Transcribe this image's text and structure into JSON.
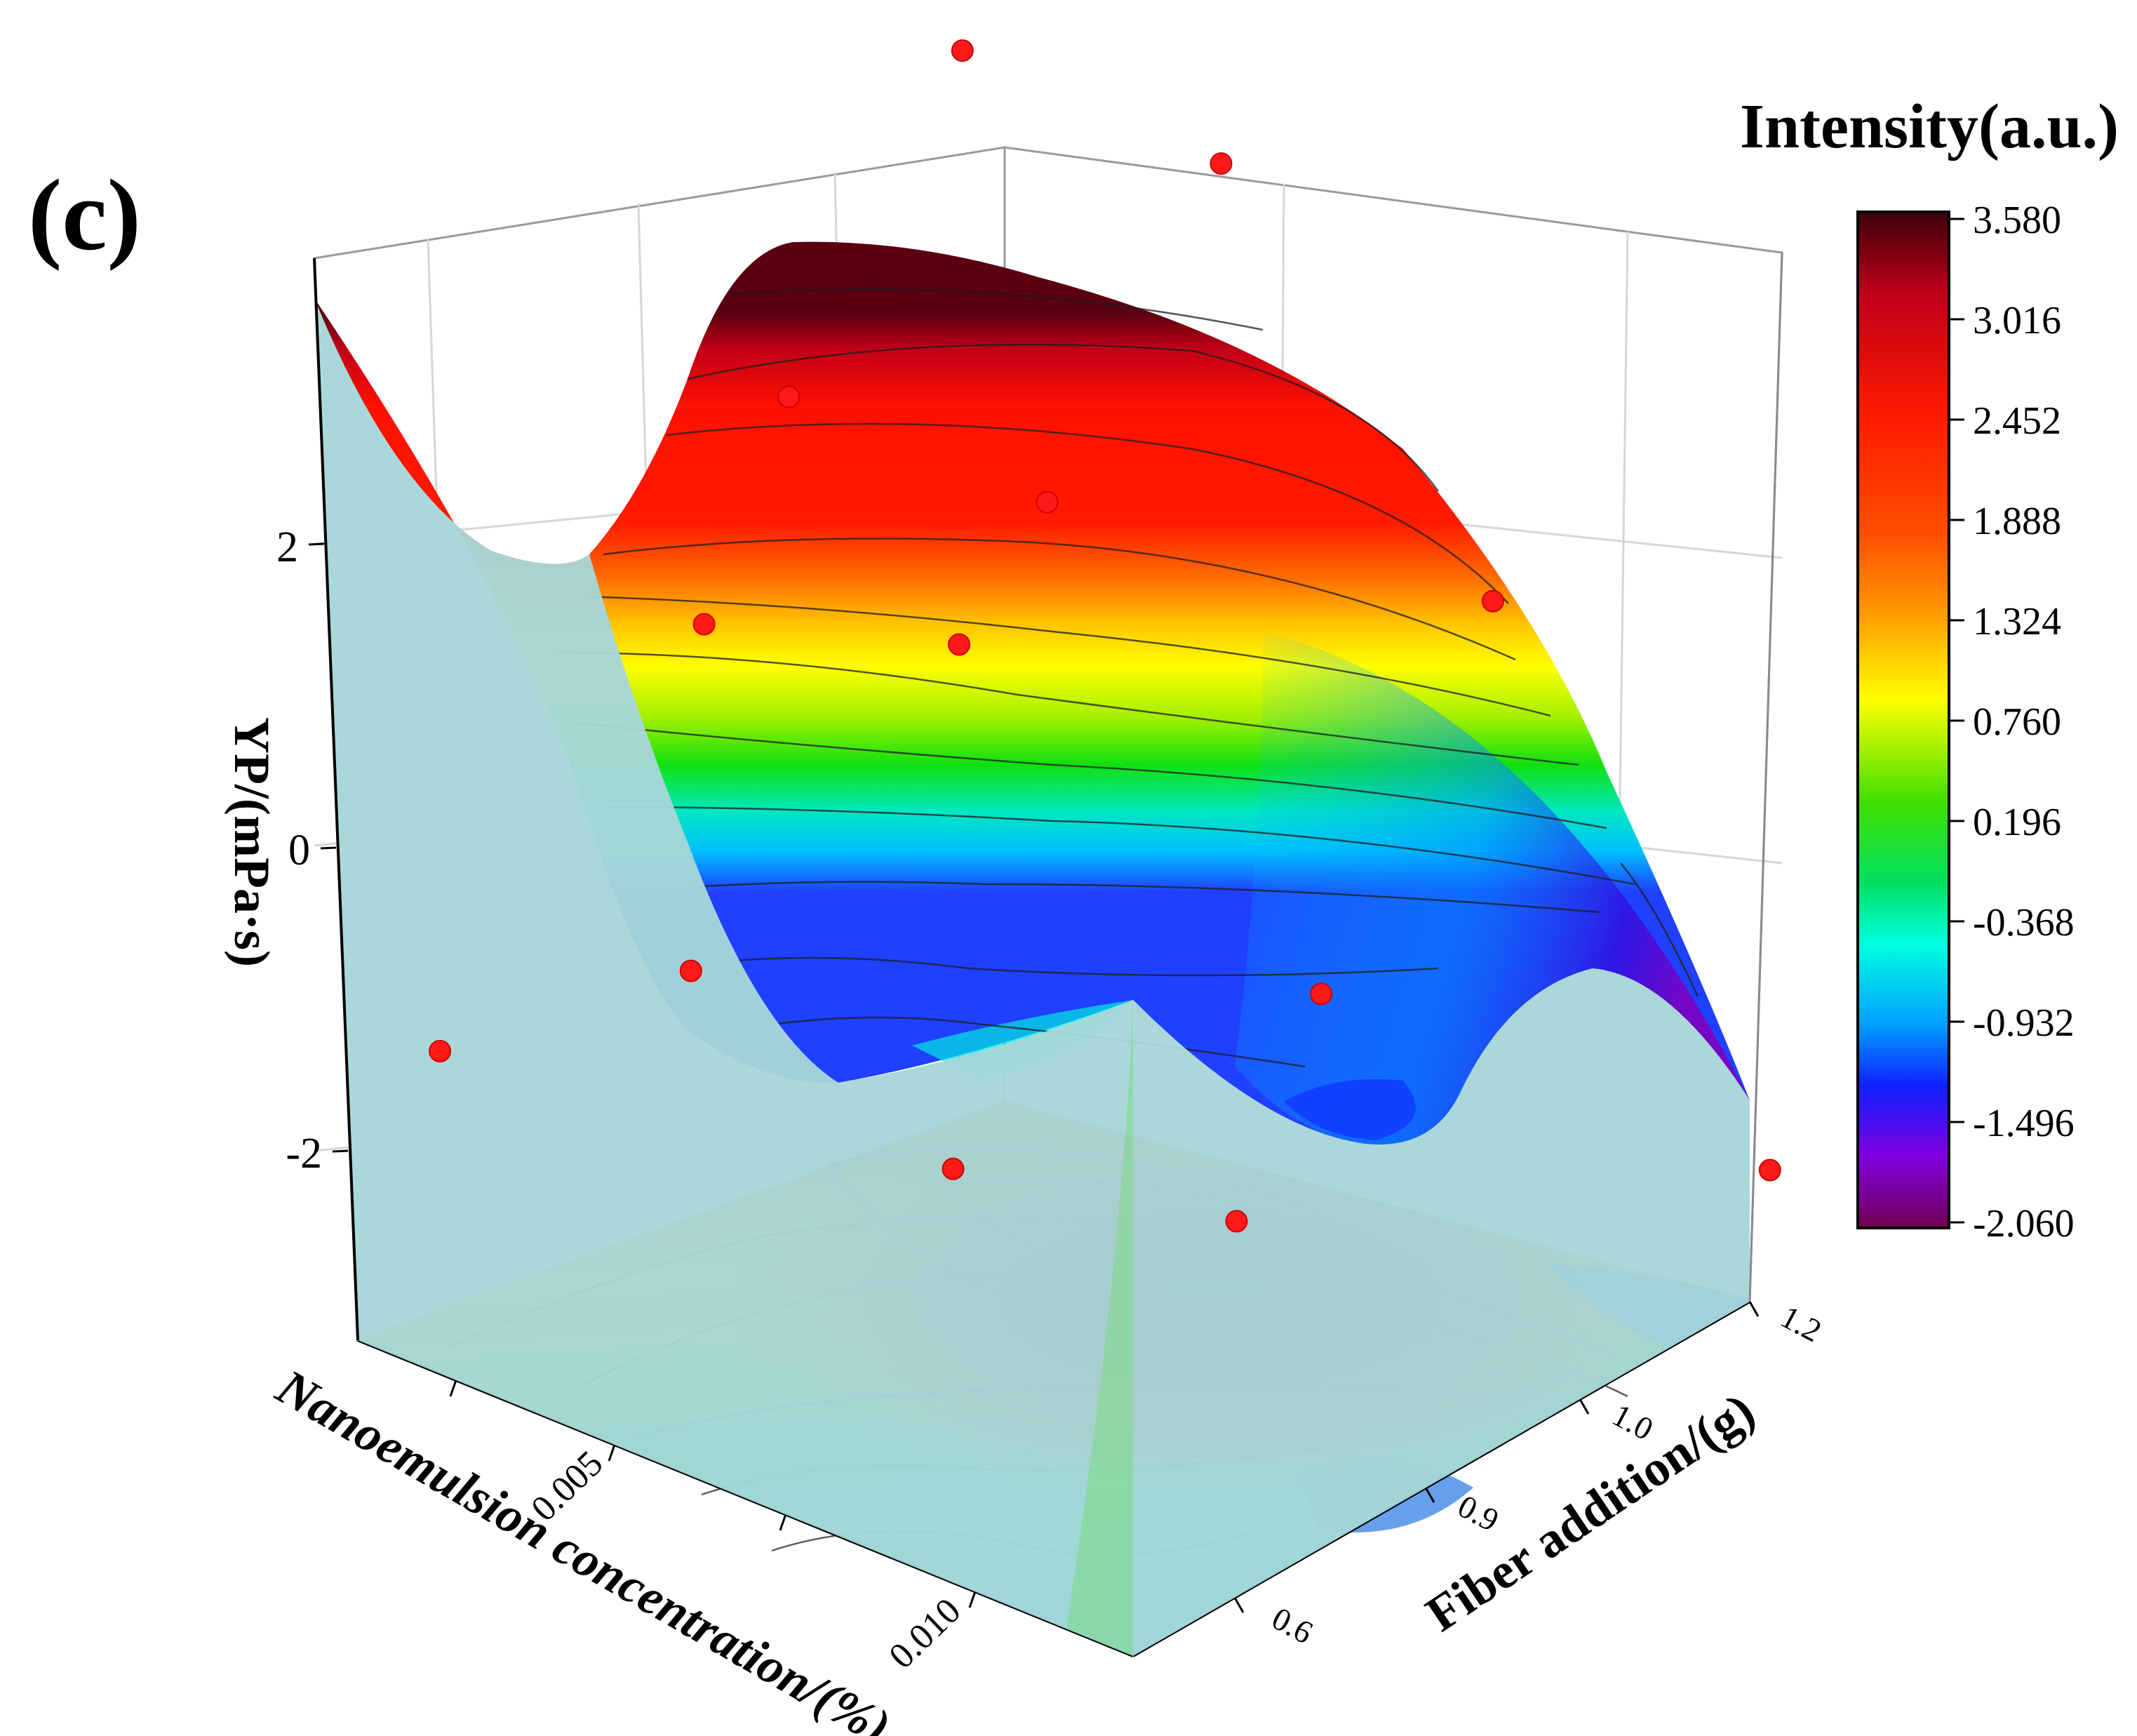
{
  "panel_label": "(c)",
  "colorbar": {
    "title": "Intensity(a.u.)",
    "ticks": [
      "3.580",
      "3.016",
      "2.452",
      "1.888",
      "1.324",
      "0.760",
      "0.196",
      "-0.368",
      "-0.932",
      "-1.496",
      "-2.060"
    ],
    "colors": [
      "#3b0008",
      "#c0001a",
      "#ff1a00",
      "#ff6000",
      "#ffb300",
      "#ffff00",
      "#a0f000",
      "#00e000",
      "#00ffd0",
      "#00a0ff",
      "#1010ff",
      "#8000e0",
      "#900060"
    ]
  },
  "chart_data": {
    "type": "surface3d",
    "title": "",
    "x_axis": {
      "label": "Nanoemulsion concentration/(%)",
      "ticks": [
        "0.005",
        "0.010"
      ],
      "range": [
        0,
        0.015
      ]
    },
    "y_axis": {
      "label": "Fiber addition/(g)",
      "ticks": [
        "0.6",
        "0.9",
        "1.0",
        "1.2"
      ],
      "range": [
        0.5,
        1.2
      ]
    },
    "z_axis": {
      "label": "YP/(mPa·s)",
      "ticks": [
        "-2",
        "0",
        "2"
      ],
      "range": [
        -3.2,
        3.8
      ]
    },
    "color_range": [
      -2.06,
      3.58
    ],
    "points": [
      {
        "conc": 0.0,
        "fiber": 1.2,
        "yp": 3.6
      },
      {
        "conc": 0.005,
        "fiber": 1.2,
        "yp": 3.55
      },
      {
        "conc": 0.005,
        "fiber": 1.0,
        "yp": 1.8
      },
      {
        "conc": 0.0,
        "fiber": 1.0,
        "yp": 1.8
      },
      {
        "conc": 0.005,
        "fiber": 0.9,
        "yp": 1.1
      },
      {
        "conc": 0.0,
        "fiber": 0.9,
        "yp": 0.55
      },
      {
        "conc": 0.005,
        "fiber": 0.6,
        "yp": -0.35
      },
      {
        "conc": 0.0,
        "fiber": 0.6,
        "yp": -1.55
      },
      {
        "conc": 0.01,
        "fiber": 1.2,
        "yp": 1.4
      },
      {
        "conc": 0.01,
        "fiber": 1.0,
        "yp": -0.7
      },
      {
        "conc": 0.01,
        "fiber": 0.6,
        "yp": -0.95
      },
      {
        "conc": 0.01,
        "fiber": 0.9,
        "yp": -1.95
      },
      {
        "conc": 0.015,
        "fiber": 1.2,
        "yp": -1.6
      }
    ]
  }
}
